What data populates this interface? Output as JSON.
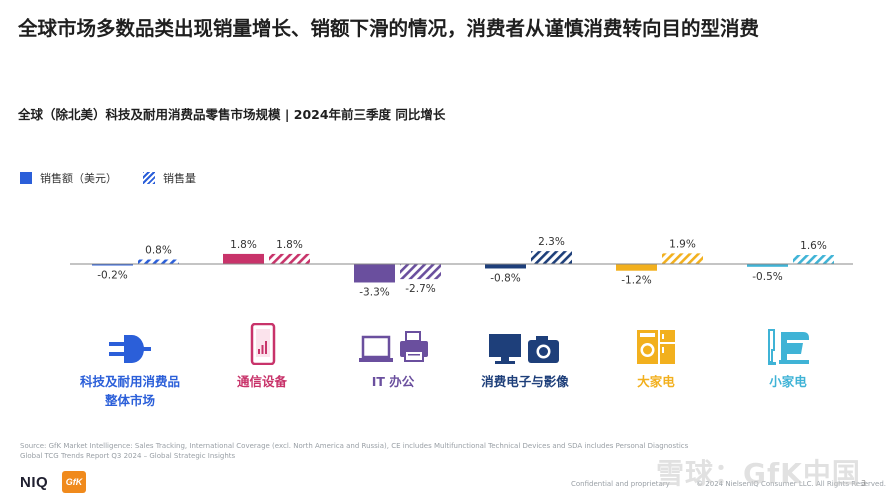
{
  "headline": "全球市场多数品类出现销量增长、销额下滑的情况，消费者从谨慎消费转向目的型消费",
  "chart_data": {
    "type": "bar",
    "title": "全球（除北美）科技及耐用消费品零售市场规模 | 2024年前三季度 同比增长",
    "legend_position": "top-left",
    "categories": [
      "科技及耐用消费品整体市场",
      "通信设备",
      "IT 办公",
      "消费电子与影像",
      "大家电",
      "小家电"
    ],
    "series": [
      {
        "name": "销售额（美元）",
        "style": "solid",
        "values": [
          -0.2,
          1.8,
          -3.3,
          -0.8,
          -1.2,
          -0.5
        ]
      },
      {
        "name": "销售量",
        "style": "hatched",
        "values": [
          0.8,
          1.8,
          -2.7,
          2.3,
          1.9,
          1.6
        ]
      }
    ],
    "value_labels_sales": [
      "-0.2%",
      "1.8%",
      "-3.3%",
      "-0.8%",
      "-1.2%",
      "-0.5%"
    ],
    "value_labels_volume": [
      "0.8%",
      "1.8%",
      "-2.7%",
      "2.3%",
      "1.9%",
      "1.6%"
    ],
    "category_colors": [
      "#2b5fd9",
      "#c8336a",
      "#6a4f9e",
      "#1e3f7a",
      "#f2b01e",
      "#3fb3d6"
    ],
    "unit": "%"
  },
  "category_label_lines": [
    [
      "科技及耐用消费品",
      "整体市场"
    ],
    [
      "通信设备"
    ],
    [
      "IT 办公"
    ],
    [
      "消费电子与影像"
    ],
    [
      "大家电"
    ],
    [
      "小家电"
    ]
  ],
  "icons": [
    "plug-icon",
    "smartphone-icon",
    "laptop-printer-icon",
    "tv-camera-icon",
    "washer-fridge-icon",
    "mixer-hairdryer-icon"
  ],
  "footer": {
    "source_line1": "Source: GfK Market Intelligence: Sales Tracking, International Coverage (excl. North America and Russia), CE includes Multifunctional Technical Devices and SDA includes Personal Diagnostics",
    "source_line2": "Global TCG Trends Report Q3 2024 – Global Strategic Insights",
    "logo_niq": "NIQ",
    "logo_gfk": "GfK",
    "confidential": "Confidential and proprietary",
    "copyright": "© 2024 NielsenIQ Consumer LLC. All Rights Reserved.",
    "watermark": "雪球：GfK中国",
    "page_number": "3"
  }
}
